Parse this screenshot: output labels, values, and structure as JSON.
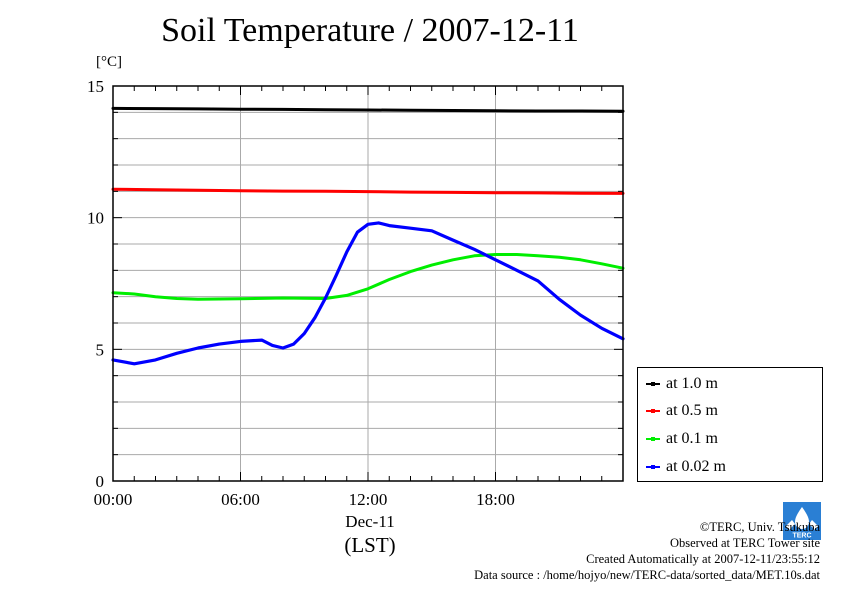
{
  "title": "Soil Temperature / 2007-12-11",
  "unit_label": "[°C]",
  "x_date_label": "Dec-11",
  "x_tz_label": "(LST)",
  "credits": [
    "©TERC, Univ. Tsukuba",
    "Observed at TERC Tower site",
    "Created Automatically at 2007-12-11/23:55:12",
    "Data source : /home/hojyo/new/TERC-data/sorted_data/MET.10s.dat"
  ],
  "logo_text": "TERC",
  "chart_data": {
    "type": "line",
    "title": "Soil Temperature / 2007-12-11",
    "ylabel": "[°C]",
    "xlabel": "(LST)",
    "xlim": [
      0,
      24
    ],
    "ylim": [
      0,
      15
    ],
    "x_ticks": [
      0,
      6,
      12,
      18
    ],
    "x_tick_labels": [
      "00:00",
      "06:00",
      "12:00",
      "18:00"
    ],
    "y_ticks": [
      0,
      5,
      10,
      15
    ],
    "y_tick_labels": [
      "0",
      "5",
      "10",
      "15"
    ],
    "grid": true,
    "legend_position": "bottom-right outside",
    "series": [
      {
        "name": "at 1.0 m",
        "color": "#000000",
        "x": [
          0,
          2,
          4,
          6,
          8,
          10,
          12,
          14,
          16,
          18,
          20,
          22,
          24
        ],
        "y": [
          14.15,
          14.14,
          14.13,
          14.12,
          14.11,
          14.1,
          14.09,
          14.08,
          14.07,
          14.06,
          14.05,
          14.05,
          14.04
        ]
      },
      {
        "name": "at 0.5 m",
        "color": "#ff0000",
        "x": [
          0,
          2,
          4,
          6,
          8,
          10,
          12,
          14,
          16,
          18,
          20,
          22,
          24
        ],
        "y": [
          11.08,
          11.06,
          11.04,
          11.02,
          11.01,
          11.0,
          10.99,
          10.97,
          10.96,
          10.95,
          10.94,
          10.93,
          10.92
        ]
      },
      {
        "name": "at 0.1 m",
        "color": "#00ee00",
        "x": [
          0,
          1,
          2,
          3,
          4,
          6,
          8,
          10,
          11,
          12,
          13,
          14,
          15,
          16,
          17,
          18,
          19,
          20,
          21,
          22,
          23,
          24
        ],
        "y": [
          7.15,
          7.1,
          7.0,
          6.93,
          6.9,
          6.92,
          6.95,
          6.93,
          7.05,
          7.3,
          7.65,
          7.95,
          8.2,
          8.4,
          8.55,
          8.6,
          8.6,
          8.55,
          8.5,
          8.4,
          8.25,
          8.08
        ]
      },
      {
        "name": "at 0.02 m",
        "color": "#0000ff",
        "x": [
          0,
          1,
          2,
          3,
          4,
          5,
          6,
          7,
          7.5,
          8,
          8.5,
          9,
          9.5,
          10,
          10.5,
          11,
          11.5,
          12,
          12.5,
          13,
          14,
          15,
          16,
          17,
          18,
          19,
          20,
          21,
          22,
          23,
          24
        ],
        "y": [
          4.6,
          4.45,
          4.6,
          4.85,
          5.05,
          5.2,
          5.3,
          5.35,
          5.15,
          5.05,
          5.2,
          5.6,
          6.2,
          6.95,
          7.8,
          8.7,
          9.45,
          9.75,
          9.8,
          9.7,
          9.6,
          9.5,
          9.15,
          8.8,
          8.4,
          8.0,
          7.6,
          6.9,
          6.3,
          5.8,
          5.4
        ]
      }
    ]
  }
}
